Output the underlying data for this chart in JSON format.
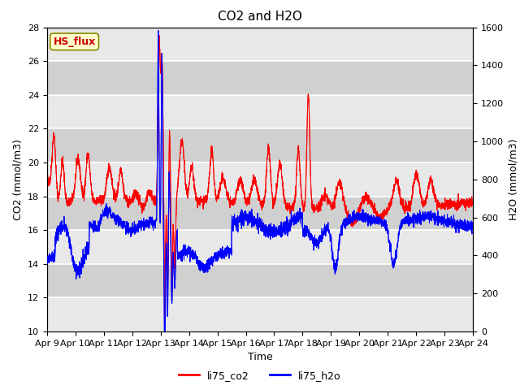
{
  "title": "CO2 and H2O",
  "xlabel": "Time",
  "ylabel_left": "CO2 (mmol/m3)",
  "ylabel_right": "H2O (mmol/m3)",
  "legend_label": "HS_flux",
  "series": [
    "li75_co2",
    "li75_h2o"
  ],
  "colors": [
    "red",
    "blue"
  ],
  "ylim_left": [
    10,
    28
  ],
  "ylim_right": [
    0,
    1600
  ],
  "yticks_left": [
    10,
    12,
    14,
    16,
    18,
    20,
    22,
    24,
    26,
    28
  ],
  "yticks_right": [
    0,
    200,
    400,
    600,
    800,
    1000,
    1200,
    1400,
    1600
  ],
  "xtick_labels": [
    "Apr 9",
    "Apr 10",
    "Apr 11",
    "Apr 12",
    "Apr 13",
    "Apr 14",
    "Apr 15",
    "Apr 16",
    "Apr 17",
    "Apr 18",
    "Apr 19",
    "Apr 20",
    "Apr 21",
    "Apr 22",
    "Apr 23",
    "Apr 24"
  ],
  "plot_bg_color": "#d8d8d8",
  "band_color": "#e8e8e8",
  "white_band": "#f0f0f0",
  "grid_color": "white",
  "title_fontsize": 11,
  "axis_label_fontsize": 9,
  "tick_fontsize": 8,
  "legend_label_color": "#cc0000",
  "legend_box_facecolor": "#ffffcc",
  "legend_box_edgecolor": "#888800"
}
